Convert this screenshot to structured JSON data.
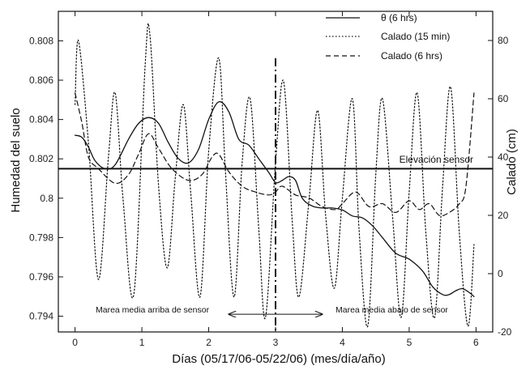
{
  "chart_data": {
    "type": "line",
    "title": "",
    "xlabel": "Días (05/17/06-05/22/06) (mes/día/año)",
    "ylabel_left": "Humedad del suelo",
    "ylabel_right": "Calado (cm)",
    "xlim": [
      -0.25,
      6.25
    ],
    "ylim_left": [
      0.7932,
      0.8095
    ],
    "ylim_right": [
      -20,
      90
    ],
    "x_ticks": [
      0,
      1,
      2,
      3,
      4,
      5,
      6
    ],
    "x_tick_labels": [
      "0",
      "1",
      "2",
      "3",
      "4",
      "5",
      "6"
    ],
    "y_left_ticks": [
      0.794,
      0.796,
      0.798,
      0.8,
      0.802,
      0.804,
      0.806,
      0.808
    ],
    "y_left_tick_labels": [
      "0.794",
      "0.796",
      "0.798",
      "0.8",
      "0.802",
      "0.804",
      "0.806",
      "0.808"
    ],
    "y_right_ticks": [
      -20,
      0,
      20,
      40,
      60,
      80
    ],
    "y_right_tick_labels": [
      "-20",
      "0",
      "20",
      "40",
      "60",
      "80"
    ],
    "grid": false,
    "legend_position": "top-right",
    "series": [
      {
        "name": "θ (6 hrs)",
        "axis": "left",
        "style": "solid",
        "x": [
          0.0,
          0.1,
          0.2,
          0.3,
          0.45,
          0.6,
          0.8,
          0.95,
          1.1,
          1.25,
          1.4,
          1.55,
          1.7,
          1.85,
          2.0,
          2.15,
          2.3,
          2.45,
          2.6,
          2.75,
          2.9,
          3.0,
          3.1,
          3.2,
          3.3,
          3.4,
          3.55,
          3.7,
          3.85,
          4.0,
          4.15,
          4.3,
          4.45,
          4.6,
          4.8,
          5.0,
          5.2,
          5.35,
          5.5,
          5.6,
          5.7,
          5.8,
          5.9,
          5.97
        ],
        "values": [
          0.8032,
          0.8031,
          0.8026,
          0.8019,
          0.8015,
          0.8017,
          0.803,
          0.8038,
          0.8041,
          0.8038,
          0.8028,
          0.802,
          0.8018,
          0.8025,
          0.804,
          0.8049,
          0.8044,
          0.803,
          0.8027,
          0.802,
          0.8013,
          0.8008,
          0.8009,
          0.8011,
          0.8009,
          0.8,
          0.7996,
          0.7995,
          0.7995,
          0.7994,
          0.7991,
          0.799,
          0.7986,
          0.798,
          0.7972,
          0.7969,
          0.7963,
          0.7955,
          0.7951,
          0.7951,
          0.7953,
          0.7954,
          0.7952,
          0.795
        ]
      },
      {
        "name": "Calado (15 min)",
        "axis": "right",
        "style": "dotted",
        "x": [
          0.0,
          0.05,
          0.2,
          0.35,
          0.5,
          0.6,
          0.72,
          0.88,
          1.05,
          1.12,
          1.25,
          1.38,
          1.5,
          1.62,
          1.73,
          1.87,
          2.0,
          2.15,
          2.25,
          2.38,
          2.5,
          2.62,
          2.75,
          2.85,
          3.0,
          3.12,
          3.25,
          3.35,
          3.5,
          3.63,
          3.75,
          3.88,
          4.0,
          4.15,
          4.25,
          4.38,
          4.5,
          4.6,
          4.75,
          4.88,
          5.0,
          5.12,
          5.25,
          5.38,
          5.5,
          5.62,
          5.75,
          5.88,
          5.97
        ],
        "values": [
          58,
          80,
          45,
          -2,
          40,
          62,
          25,
          -7,
          72,
          82,
          30,
          2,
          33,
          58,
          28,
          -8,
          42,
          74,
          35,
          -8,
          38,
          60,
          15,
          -15,
          38,
          66,
          18,
          -8,
          25,
          56,
          20,
          -5,
          26,
          60,
          15,
          -18,
          34,
          60,
          20,
          -15,
          28,
          62,
          14,
          -15,
          30,
          64,
          14,
          -18,
          10
        ]
      },
      {
        "name": "Calado (6 hrs)",
        "axis": "right",
        "style": "dashed",
        "x": [
          0.0,
          0.1,
          0.2,
          0.35,
          0.6,
          0.8,
          0.95,
          1.1,
          1.25,
          1.45,
          1.7,
          1.9,
          2.05,
          2.15,
          2.3,
          2.5,
          2.7,
          2.9,
          3.0,
          3.1,
          3.3,
          3.5,
          3.7,
          3.9,
          4.0,
          4.2,
          4.4,
          4.6,
          4.8,
          5.0,
          5.15,
          5.3,
          5.45,
          5.6,
          5.75,
          5.85,
          5.97
        ],
        "values": [
          62,
          52,
          40,
          36,
          31,
          34,
          41,
          48,
          43,
          36,
          32,
          34,
          40,
          41,
          35,
          30,
          28,
          27,
          28,
          30,
          27,
          26,
          23,
          22,
          24,
          28,
          23,
          24,
          21,
          25,
          22,
          24,
          20,
          21,
          24,
          30,
          62
        ]
      }
    ],
    "reference_line": {
      "label": "Elevación sensor",
      "y_left": 0.8015
    },
    "vertical_marker_x": 3.0,
    "arrow": {
      "x_start": 2.3,
      "x_end": 3.7,
      "y_left": 0.7941
    },
    "annotations": {
      "left": "Marea media arriba de sensor",
      "right": "Marea media abajo de sensor"
    }
  }
}
